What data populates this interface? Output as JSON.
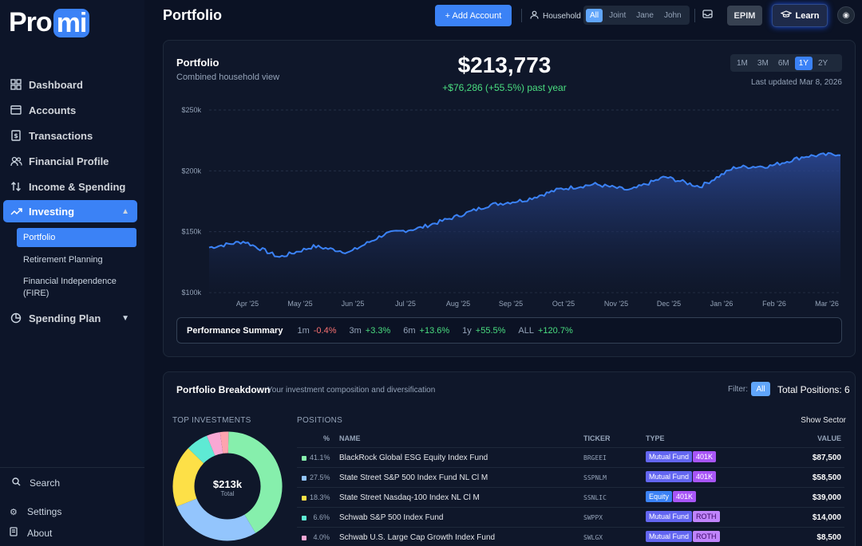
{
  "app": {
    "logo_pro": "Pro",
    "logo_mi": "mi"
  },
  "sidebar": {
    "items": [
      {
        "label": "Dashboard",
        "icon": "grid-icon"
      },
      {
        "label": "Accounts",
        "icon": "credit-card-icon"
      },
      {
        "label": "Transactions",
        "icon": "receipt-icon"
      },
      {
        "label": "Financial Profile",
        "icon": "users-icon"
      },
      {
        "label": "Income & Spending",
        "icon": "arrows-updown-icon"
      },
      {
        "label": "Investing",
        "icon": "trending-up-icon"
      },
      {
        "label": "Spending Plan",
        "icon": "pie-chart-icon"
      }
    ],
    "investing_sub": [
      "Portfolio",
      "Retirement Planning",
      "Financial Independence (FIRE)"
    ],
    "search": "Search",
    "settings": "Settings",
    "about": "About"
  },
  "header": {
    "title": "Portfolio",
    "add_account": "+ Add Account",
    "household_label": "Household",
    "household_options": [
      "All",
      "Joint",
      "Jane",
      "John"
    ],
    "household_selected": "All",
    "epim": "EPIM",
    "learn": "Learn"
  },
  "portfolio": {
    "title": "Portfolio",
    "subtitle": "Combined household view",
    "value": "$213,773",
    "change": "+$76,286 (+55.5%) past year",
    "ranges": [
      "1M",
      "3M",
      "6M",
      "1Y",
      "2Y"
    ],
    "range_selected": "1Y",
    "updated": "Last updated Mar 8, 2026"
  },
  "chart_data": {
    "type": "area",
    "y_ticks": [
      "$250k",
      "$200k",
      "$150k",
      "$100k"
    ],
    "x_ticks": [
      "Apr '25",
      "May '25",
      "Jun '25",
      "Jul '25",
      "Aug '25",
      "Sep '25",
      "Oct '25",
      "Nov '25",
      "Dec '25",
      "Jan '26",
      "Feb '26",
      "Mar '26"
    ],
    "ylim": [
      100000,
      250000
    ],
    "x": [
      "Mar '25",
      "Apr '25",
      "Apr '25",
      "Apr '25",
      "Apr '25",
      "May '25",
      "May '25",
      "Jun '25",
      "Jul '25",
      "Aug '25",
      "Sep '25",
      "Oct '25",
      "Oct '25",
      "Nov '25",
      "Nov '25",
      "Dec '25",
      "Jan '26",
      "Feb '26",
      "Mar '26"
    ],
    "values": [
      137000,
      142000,
      129000,
      138000,
      133000,
      148000,
      153000,
      162000,
      172000,
      176000,
      185000,
      189000,
      184000,
      195000,
      187000,
      203000,
      204000,
      212000,
      214000
    ],
    "series": [
      {
        "values": [
          137000,
          142000,
          129000,
          138000,
          133000,
          148000,
          153000,
          162000,
          172000,
          176000,
          185000,
          189000,
          184000,
          195000,
          187000,
          203000,
          204000,
          212000,
          214000
        ]
      }
    ]
  },
  "performance": {
    "label": "Performance Summary",
    "items": [
      {
        "k": "1m",
        "v": "-0.4%",
        "neg": true
      },
      {
        "k": "3m",
        "v": "+3.3%",
        "neg": false
      },
      {
        "k": "6m",
        "v": "+13.6%",
        "neg": false
      },
      {
        "k": "1y",
        "v": "+55.5%",
        "neg": false
      },
      {
        "k": "ALL",
        "v": "+120.7%",
        "neg": false
      }
    ]
  },
  "breakdown": {
    "title": "Portfolio Breakdown",
    "subtitle": "Your investment composition and diversification",
    "filter_label": "Filter:",
    "filter_value": "All",
    "total_positions": "Total Positions: 6",
    "top_investments": "TOP INVESTMENTS",
    "positions_label": "POSITIONS",
    "show_sector": "Show Sector",
    "donut_value": "$213k",
    "donut_label": "Total",
    "donut_colors": [
      "#86efac",
      "#93c5fd",
      "#fde047",
      "#5eead4",
      "#f9a8d4",
      "#fda4af"
    ],
    "donut_percents": [
      41.1,
      27.5,
      18.3,
      6.6,
      4.0,
      2.5
    ],
    "columns": [
      "%",
      "NAME",
      "TICKER",
      "TYPE",
      "VALUE"
    ],
    "rows": [
      {
        "pct": "41.1%",
        "name": "BlackRock Global ESG Equity Index Fund",
        "ticker": "BRGEEI",
        "type": "Mutual Fund",
        "acct": "401K",
        "value": "$87,500",
        "color": "#86efac"
      },
      {
        "pct": "27.5%",
        "name": "State Street S&P 500 Index Fund NL Cl M",
        "ticker": "SSPNLM",
        "type": "Mutual Fund",
        "acct": "401K",
        "value": "$58,500",
        "color": "#93c5fd"
      },
      {
        "pct": "18.3%",
        "name": "State Street Nasdaq-100 Index NL Cl M",
        "ticker": "SSNLIC",
        "type": "Equity",
        "acct": "401K",
        "value": "$39,000",
        "color": "#fde047"
      },
      {
        "pct": "6.6%",
        "name": "Schwab S&P 500 Index Fund",
        "ticker": "SWPPX",
        "type": "Mutual Fund",
        "acct": "ROTH",
        "value": "$14,000",
        "color": "#5eead4"
      },
      {
        "pct": "4.0%",
        "name": "Schwab U.S. Large Cap Growth Index Fund",
        "ticker": "SWLGX",
        "type": "Mutual Fund",
        "acct": "ROTH",
        "value": "$8,500",
        "color": "#f9a8d4"
      }
    ]
  }
}
